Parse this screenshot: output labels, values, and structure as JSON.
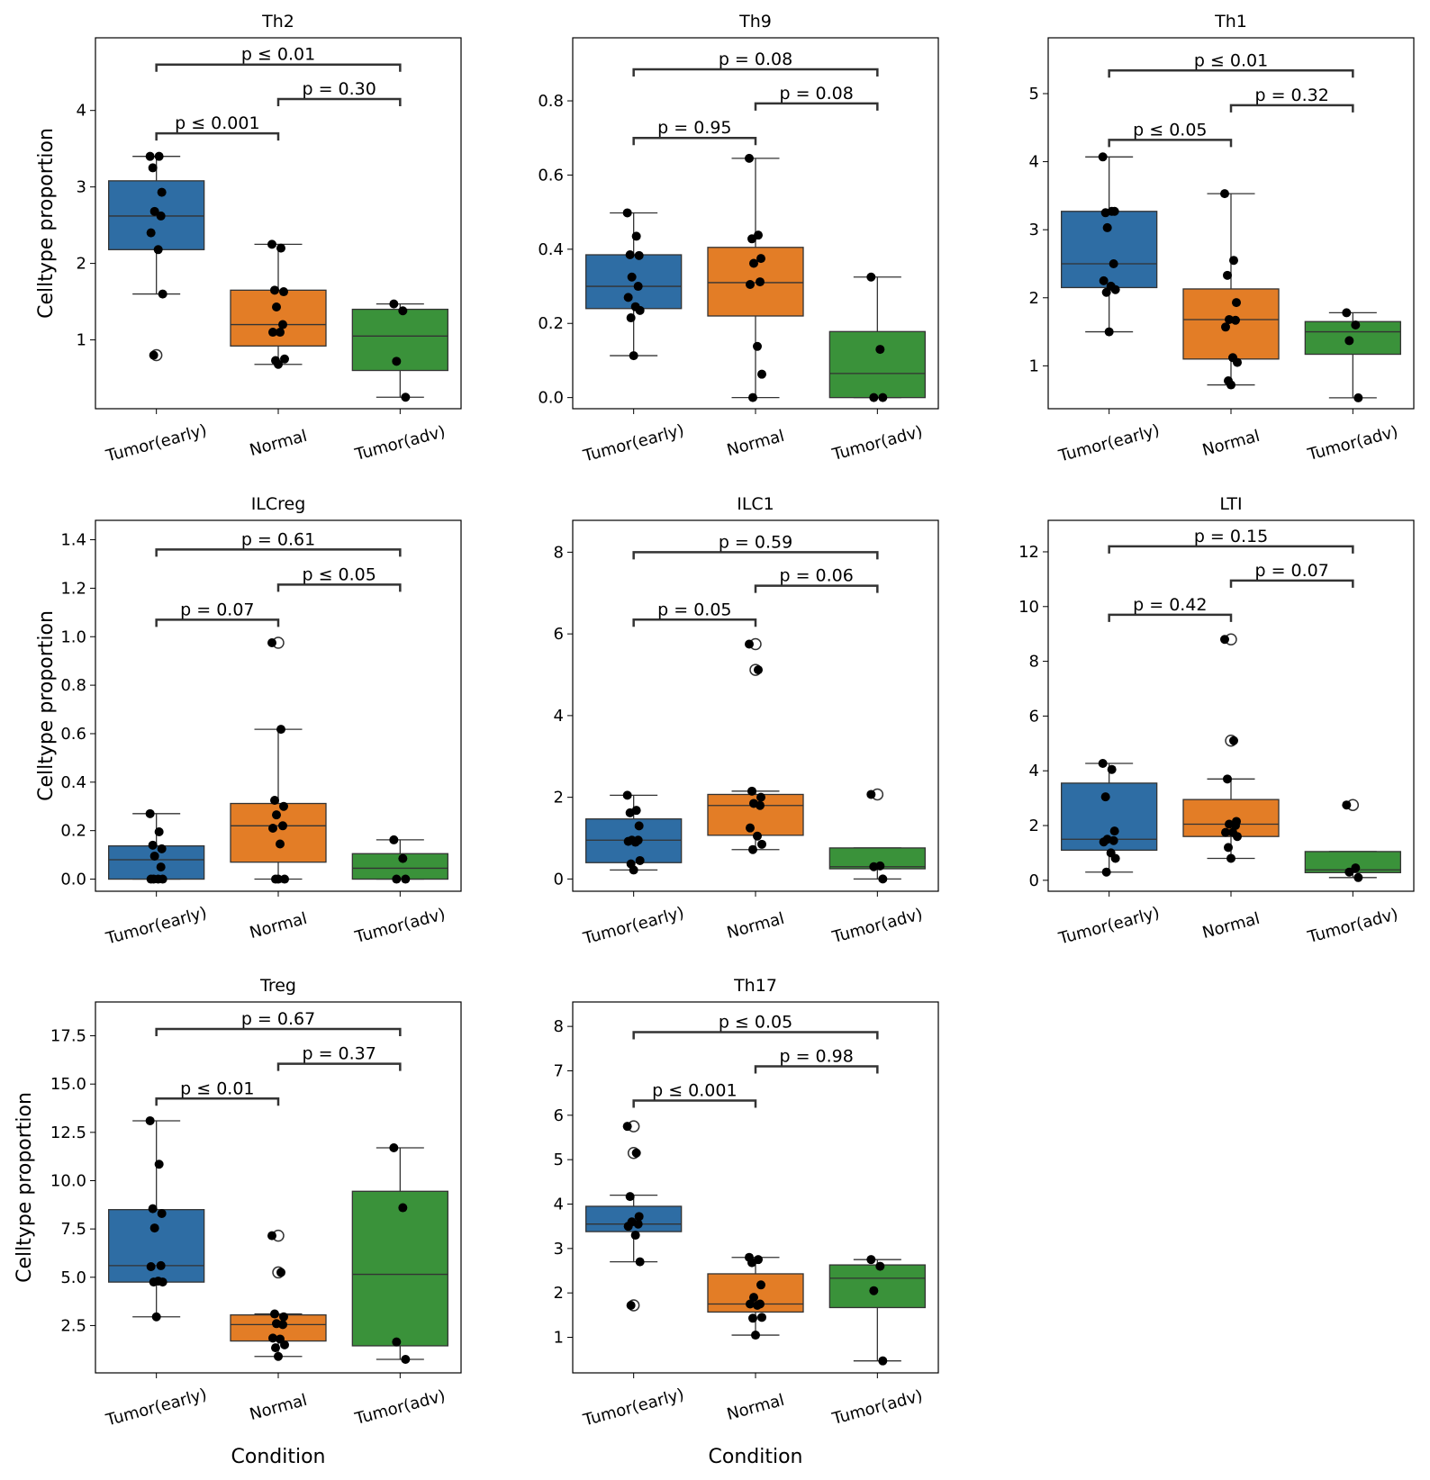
{
  "figure": {
    "xlabel": "Condition",
    "ylabel": "Celltype proportion"
  },
  "chart_data": [
    {
      "type": "box",
      "title": "Th2",
      "categories": [
        "Tumor(early)",
        "Normal",
        "Tumor(adv)"
      ],
      "colors": [
        "#2e6da4",
        "#e37d26",
        "#3a923a"
      ],
      "ylim": [
        0.1,
        4.95
      ],
      "yticks": [
        1,
        2,
        3,
        4
      ],
      "ytick_labels": [
        "1",
        "2",
        "3",
        "4"
      ],
      "show_ylabel": true,
      "show_xlabel": false,
      "boxes": [
        {
          "q1": 2.18,
          "median": 2.62,
          "q3": 3.08,
          "whislo": 1.6,
          "whishi": 3.4,
          "fliers": [
            0.8
          ]
        },
        {
          "q1": 0.92,
          "median": 1.2,
          "q3": 1.65,
          "whislo": 0.68,
          "whishi": 2.25,
          "fliers": []
        },
        {
          "q1": 0.6,
          "median": 1.05,
          "q3": 1.4,
          "whislo": 0.25,
          "whishi": 1.47,
          "fliers": []
        }
      ],
      "points": [
        [
          3.4,
          3.4,
          3.25,
          2.93,
          2.68,
          2.62,
          2.4,
          2.18,
          1.6,
          0.8
        ],
        [
          2.25,
          2.2,
          1.65,
          1.63,
          1.43,
          1.2,
          1.1,
          1.1,
          0.75,
          0.73,
          0.68
        ],
        [
          1.47,
          1.38,
          0.72,
          0.25
        ]
      ],
      "significance": [
        {
          "from": 0,
          "to": 1,
          "label": "p ≤ 0.001",
          "y": 3.7
        },
        {
          "from": 1,
          "to": 2,
          "label": "p = 0.30",
          "y": 4.15
        },
        {
          "from": 0,
          "to": 2,
          "label": "p ≤ 0.01",
          "y": 4.6
        }
      ]
    },
    {
      "type": "box",
      "title": "Th9",
      "categories": [
        "Tumor(early)",
        "Normal",
        "Tumor(adv)"
      ],
      "colors": [
        "#2e6da4",
        "#e37d26",
        "#3a923a"
      ],
      "ylim": [
        -0.03,
        0.97
      ],
      "yticks": [
        0.0,
        0.2,
        0.4,
        0.6,
        0.8
      ],
      "ytick_labels": [
        "0.0",
        "0.2",
        "0.4",
        "0.6",
        "0.8"
      ],
      "show_ylabel": false,
      "show_xlabel": false,
      "boxes": [
        {
          "q1": 0.24,
          "median": 0.3,
          "q3": 0.385,
          "whislo": 0.113,
          "whishi": 0.498,
          "fliers": []
        },
        {
          "q1": 0.22,
          "median": 0.31,
          "q3": 0.405,
          "whislo": 0.0,
          "whishi": 0.645,
          "fliers": []
        },
        {
          "q1": 0.0,
          "median": 0.065,
          "q3": 0.178,
          "whislo": 0.0,
          "whishi": 0.325,
          "fliers": []
        }
      ],
      "points": [
        [
          0.498,
          0.435,
          0.385,
          0.383,
          0.325,
          0.3,
          0.27,
          0.245,
          0.235,
          0.215,
          0.113
        ],
        [
          0.645,
          0.438,
          0.428,
          0.375,
          0.362,
          0.312,
          0.305,
          0.138,
          0.063,
          0.0
        ],
        [
          0.325,
          0.13,
          0.0,
          0.0
        ]
      ],
      "significance": [
        {
          "from": 0,
          "to": 1,
          "label": "p = 0.95",
          "y": 0.7
        },
        {
          "from": 1,
          "to": 2,
          "label": "p = 0.08",
          "y": 0.793
        },
        {
          "from": 0,
          "to": 2,
          "label": "p = 0.08",
          "y": 0.885
        }
      ]
    },
    {
      "type": "box",
      "title": "Th1",
      "categories": [
        "Tumor(early)",
        "Normal",
        "Tumor(adv)"
      ],
      "colors": [
        "#2e6da4",
        "#e37d26",
        "#3a923a"
      ],
      "ylim": [
        0.37,
        5.82
      ],
      "yticks": [
        1,
        2,
        3,
        4,
        5
      ],
      "ytick_labels": [
        "1",
        "2",
        "3",
        "4",
        "5"
      ],
      "show_ylabel": false,
      "show_xlabel": false,
      "boxes": [
        {
          "q1": 2.15,
          "median": 2.5,
          "q3": 3.27,
          "whislo": 1.5,
          "whishi": 4.07,
          "fliers": []
        },
        {
          "q1": 1.1,
          "median": 1.68,
          "q3": 2.13,
          "whislo": 0.72,
          "whishi": 3.53,
          "fliers": []
        },
        {
          "q1": 1.17,
          "median": 1.5,
          "q3": 1.65,
          "whislo": 0.53,
          "whishi": 1.78,
          "fliers": []
        }
      ],
      "points": [
        [
          4.07,
          3.27,
          3.25,
          3.27,
          3.03,
          2.5,
          2.25,
          2.17,
          2.12,
          2.08,
          1.5
        ],
        [
          3.53,
          2.55,
          2.33,
          1.93,
          1.68,
          1.67,
          1.57,
          1.12,
          1.05,
          0.78,
          0.72
        ],
        [
          1.78,
          1.6,
          1.37,
          0.53
        ]
      ],
      "significance": [
        {
          "from": 0,
          "to": 1,
          "label": "p ≤ 0.05",
          "y": 4.32
        },
        {
          "from": 1,
          "to": 2,
          "label": "p = 0.32",
          "y": 4.83
        },
        {
          "from": 0,
          "to": 2,
          "label": "p ≤ 0.01",
          "y": 5.34
        }
      ]
    },
    {
      "type": "box",
      "title": "ILCreg",
      "categories": [
        "Tumor(early)",
        "Normal",
        "Tumor(adv)"
      ],
      "colors": [
        "#2e6da4",
        "#e37d26",
        "#3a923a"
      ],
      "ylim": [
        -0.05,
        1.48
      ],
      "yticks": [
        0.0,
        0.2,
        0.4,
        0.6,
        0.8,
        1.0,
        1.2,
        1.4
      ],
      "ytick_labels": [
        "0.0",
        "0.2",
        "0.4",
        "0.6",
        "0.8",
        "1.0",
        "1.2",
        "1.4"
      ],
      "show_ylabel": true,
      "show_xlabel": false,
      "boxes": [
        {
          "q1": 0.0,
          "median": 0.08,
          "q3": 0.137,
          "whislo": 0.0,
          "whishi": 0.27,
          "fliers": []
        },
        {
          "q1": 0.07,
          "median": 0.22,
          "q3": 0.312,
          "whislo": 0.0,
          "whishi": 0.618,
          "fliers": [
            0.975
          ]
        },
        {
          "q1": 0.0,
          "median": 0.045,
          "q3": 0.105,
          "whislo": 0.0,
          "whishi": 0.162,
          "fliers": []
        }
      ],
      "points": [
        [
          0.27,
          0.195,
          0.14,
          0.125,
          0.095,
          0.05,
          0.0,
          0.0,
          0.0,
          0.0
        ],
        [
          0.975,
          0.618,
          0.325,
          0.3,
          0.265,
          0.22,
          0.21,
          0.145,
          0.0,
          0.0,
          0.0
        ],
        [
          0.162,
          0.085,
          0.0,
          0.0
        ]
      ],
      "significance": [
        {
          "from": 0,
          "to": 1,
          "label": "p = 0.07",
          "y": 1.07
        },
        {
          "from": 1,
          "to": 2,
          "label": "p ≤ 0.05",
          "y": 1.215
        },
        {
          "from": 0,
          "to": 2,
          "label": "p = 0.61",
          "y": 1.36
        }
      ]
    },
    {
      "type": "box",
      "title": "ILC1",
      "categories": [
        "Tumor(early)",
        "Normal",
        "Tumor(adv)"
      ],
      "colors": [
        "#2e6da4",
        "#e37d26",
        "#3a923a"
      ],
      "ylim": [
        -0.3,
        8.78
      ],
      "yticks": [
        0,
        2,
        4,
        6,
        8
      ],
      "ytick_labels": [
        "0",
        "2",
        "4",
        "6",
        "8"
      ],
      "show_ylabel": false,
      "show_xlabel": false,
      "boxes": [
        {
          "q1": 0.4,
          "median": 0.95,
          "q3": 1.47,
          "whislo": 0.22,
          "whishi": 2.05,
          "fliers": []
        },
        {
          "q1": 1.07,
          "median": 1.8,
          "q3": 2.07,
          "whislo": 0.72,
          "whishi": 2.15,
          "fliers": [
            5.12,
            5.75
          ]
        },
        {
          "q1": 0.25,
          "median": 0.3,
          "q3": 0.76,
          "whislo": 0.0,
          "whishi": 0.76,
          "fliers": [
            2.07
          ]
        }
      ],
      "points": [
        [
          2.05,
          1.68,
          1.62,
          1.3,
          0.95,
          0.95,
          0.92,
          0.9,
          0.45,
          0.37,
          0.22
        ],
        [
          5.75,
          5.12,
          2.15,
          2.0,
          1.85,
          1.8,
          1.25,
          1.05,
          0.85,
          0.72
        ],
        [
          2.07,
          0.32,
          0.3,
          0.0
        ]
      ],
      "significance": [
        {
          "from": 0,
          "to": 1,
          "label": "p = 0.05",
          "y": 6.35
        },
        {
          "from": 1,
          "to": 2,
          "label": "p = 0.06",
          "y": 7.18
        },
        {
          "from": 0,
          "to": 2,
          "label": "p = 0.59",
          "y": 8.0
        }
      ]
    },
    {
      "type": "box",
      "title": "LTI",
      "categories": [
        "Tumor(early)",
        "Normal",
        "Tumor(adv)"
      ],
      "colors": [
        "#2e6da4",
        "#e37d26",
        "#3a923a"
      ],
      "ylim": [
        -0.4,
        13.15
      ],
      "yticks": [
        0,
        2,
        4,
        6,
        8,
        10,
        12
      ],
      "ytick_labels": [
        "0",
        "2",
        "4",
        "6",
        "8",
        "10",
        "12"
      ],
      "show_ylabel": false,
      "show_xlabel": false,
      "boxes": [
        {
          "q1": 1.1,
          "median": 1.5,
          "q3": 3.55,
          "whislo": 0.3,
          "whishi": 4.27,
          "fliers": []
        },
        {
          "q1": 1.6,
          "median": 2.05,
          "q3": 2.95,
          "whislo": 0.8,
          "whishi": 3.7,
          "fliers": [
            5.1,
            8.8
          ]
        },
        {
          "q1": 0.28,
          "median": 0.38,
          "q3": 1.05,
          "whislo": 0.1,
          "whishi": 1.05,
          "fliers": [
            2.75
          ]
        }
      ],
      "points": [
        [
          4.27,
          4.05,
          3.05,
          1.8,
          1.5,
          1.45,
          1.4,
          1.0,
          0.8,
          0.3
        ],
        [
          8.8,
          5.1,
          3.7,
          2.15,
          2.05,
          2.0,
          1.75,
          1.75,
          1.6,
          1.2,
          0.8
        ],
        [
          2.75,
          0.45,
          0.3,
          0.1
        ]
      ],
      "significance": [
        {
          "from": 0,
          "to": 1,
          "label": "p = 0.42",
          "y": 9.7
        },
        {
          "from": 1,
          "to": 2,
          "label": "p = 0.07",
          "y": 10.95
        },
        {
          "from": 0,
          "to": 2,
          "label": "p = 0.15",
          "y": 12.2
        }
      ]
    },
    {
      "type": "box",
      "title": "Treg",
      "categories": [
        "Tumor(early)",
        "Normal",
        "Tumor(adv)"
      ],
      "colors": [
        "#2e6da4",
        "#e37d26",
        "#3a923a"
      ],
      "ylim": [
        0.05,
        19.25
      ],
      "yticks": [
        2.5,
        5.0,
        7.5,
        10.0,
        12.5,
        15.0,
        17.5
      ],
      "ytick_labels": [
        "2.5",
        "5.0",
        "7.5",
        "10.0",
        "12.5",
        "15.0",
        "17.5"
      ],
      "show_ylabel": true,
      "show_xlabel": true,
      "boxes": [
        {
          "q1": 4.75,
          "median": 5.6,
          "q3": 8.5,
          "whislo": 2.95,
          "whishi": 13.1,
          "fliers": []
        },
        {
          "q1": 1.7,
          "median": 2.55,
          "q3": 3.05,
          "whislo": 0.9,
          "whishi": 3.1,
          "fliers": [
            5.25,
            7.15
          ]
        },
        {
          "q1": 1.45,
          "median": 5.15,
          "q3": 9.45,
          "whislo": 0.75,
          "whishi": 11.7,
          "fliers": []
        }
      ],
      "points": [
        [
          13.1,
          10.85,
          8.55,
          8.3,
          7.55,
          5.6,
          5.55,
          4.8,
          4.75,
          4.75,
          2.95
        ],
        [
          7.15,
          5.25,
          3.1,
          2.95,
          2.6,
          2.55,
          1.85,
          1.8,
          1.5,
          1.35,
          0.9
        ],
        [
          11.7,
          8.6,
          1.65,
          0.75
        ]
      ],
      "significance": [
        {
          "from": 0,
          "to": 1,
          "label": "p ≤ 0.01",
          "y": 14.25
        },
        {
          "from": 1,
          "to": 2,
          "label": "p = 0.37",
          "y": 16.05
        },
        {
          "from": 0,
          "to": 2,
          "label": "p = 0.67",
          "y": 17.85
        }
      ]
    },
    {
      "type": "box",
      "title": "Th17",
      "categories": [
        "Tumor(early)",
        "Normal",
        "Tumor(adv)"
      ],
      "colors": [
        "#2e6da4",
        "#e37d26",
        "#3a923a"
      ],
      "ylim": [
        0.2,
        8.55
      ],
      "yticks": [
        1,
        2,
        3,
        4,
        5,
        6,
        7,
        8
      ],
      "ytick_labels": [
        "1",
        "2",
        "3",
        "4",
        "5",
        "6",
        "7",
        "8"
      ],
      "show_ylabel": false,
      "show_xlabel": true,
      "boxes": [
        {
          "q1": 3.38,
          "median": 3.55,
          "q3": 3.95,
          "whislo": 2.7,
          "whishi": 4.2,
          "fliers": [
            1.72,
            5.15,
            5.75
          ]
        },
        {
          "q1": 1.57,
          "median": 1.75,
          "q3": 2.43,
          "whislo": 1.05,
          "whishi": 2.8,
          "fliers": []
        },
        {
          "q1": 1.67,
          "median": 2.33,
          "q3": 2.63,
          "whislo": 0.47,
          "whishi": 2.75,
          "fliers": []
        }
      ],
      "points": [
        [
          5.75,
          5.15,
          4.17,
          3.72,
          3.6,
          3.55,
          3.5,
          3.3,
          2.7,
          1.72
        ],
        [
          2.8,
          2.75,
          2.68,
          2.18,
          1.9,
          1.75,
          1.75,
          1.72,
          1.45,
          1.43,
          1.05
        ],
        [
          2.75,
          2.6,
          2.05,
          0.47
        ]
      ],
      "significance": [
        {
          "from": 0,
          "to": 1,
          "label": "p ≤ 0.001",
          "y": 6.33
        },
        {
          "from": 1,
          "to": 2,
          "label": "p = 0.98",
          "y": 7.1
        },
        {
          "from": 0,
          "to": 2,
          "label": "p ≤ 0.05",
          "y": 7.87
        }
      ]
    }
  ]
}
